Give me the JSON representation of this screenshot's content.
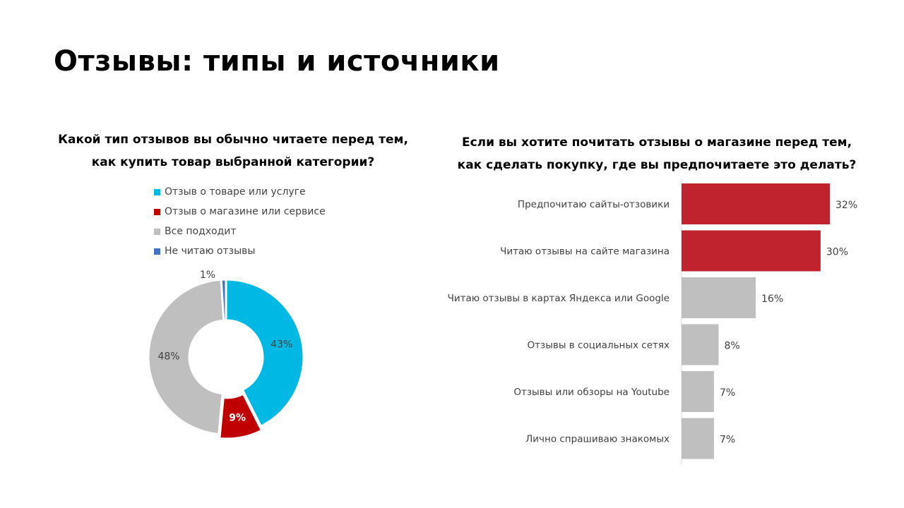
{
  "title": "Отзывы: типы и источники",
  "chart_data": [
    {
      "type": "pie",
      "title": "Какой тип отзывов вы обычно читаете перед тем, как купить товар выбранной категории?",
      "title_lines": [
        "Какой тип отзывов вы обычно читаете перед тем,",
        "как купить товар выбранной категории?"
      ],
      "legend_position": "top",
      "categories": [
        "Отзыв о товаре или услуге",
        "Отзыв о магазине или сервисе",
        "Все подходит",
        "Не читаю отзывы"
      ],
      "values": [
        43,
        9,
        48,
        1
      ],
      "labels": [
        "43%",
        "9%",
        "48%",
        "1%"
      ],
      "colors": [
        "#00b8e4",
        "#c00000",
        "#bfbfbf",
        "#4472c4"
      ]
    },
    {
      "type": "bar",
      "orientation": "horizontal",
      "title": "Если вы хотите почитать отзывы о магазине перед тем, как сделать покупку, где вы предпочитаете это делать?",
      "title_lines": [
        "Если вы хотите почитать отзывы о магазине перед тем,",
        "как сделать покупку, где вы предпочитаете это делать?"
      ],
      "categories": [
        "Предпочитаю сайты-отзовики",
        "Читаю отзывы на сайте магазина",
        "Читаю отзывы в картах Яндекса или Google",
        "Отзывы в социальных сетях",
        "Отзывы или обзоры на Youtube",
        "Лично спрашиваю знакомых"
      ],
      "values": [
        32,
        30,
        16,
        8,
        7,
        7
      ],
      "labels": [
        "32%",
        "30%",
        "16%",
        "8%",
        "7%",
        "7%"
      ],
      "colors": [
        "#c0232e",
        "#c0232e",
        "#bfbfbf",
        "#bfbfbf",
        "#bfbfbf",
        "#bfbfbf"
      ],
      "xlim": [
        0,
        32
      ]
    }
  ]
}
